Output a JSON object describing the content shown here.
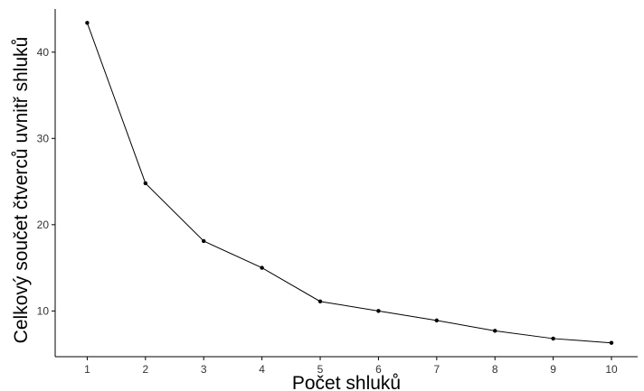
{
  "chart_data": {
    "type": "line",
    "title": "",
    "xlabel": "Počet shluků",
    "ylabel": "Celkový součet čtverců uvnitř shluků",
    "x": [
      1,
      2,
      3,
      4,
      5,
      6,
      7,
      8,
      9,
      10
    ],
    "series": [
      {
        "name": "",
        "values": [
          43.4,
          24.8,
          18.1,
          15.0,
          11.1,
          10.0,
          8.9,
          7.7,
          6.8,
          6.3
        ]
      }
    ],
    "xticks": [
      1,
      2,
      3,
      4,
      5,
      6,
      7,
      8,
      9,
      10
    ],
    "yticks": [
      10,
      20,
      30,
      40
    ],
    "xlim": [
      0.45,
      10.45
    ],
    "ylim": [
      4.7,
      45.0
    ],
    "grid": false,
    "legend": "none",
    "colors": {
      "line": "#000000",
      "point": "#000000",
      "axis": "#000000",
      "tick_label": "#333333"
    }
  }
}
